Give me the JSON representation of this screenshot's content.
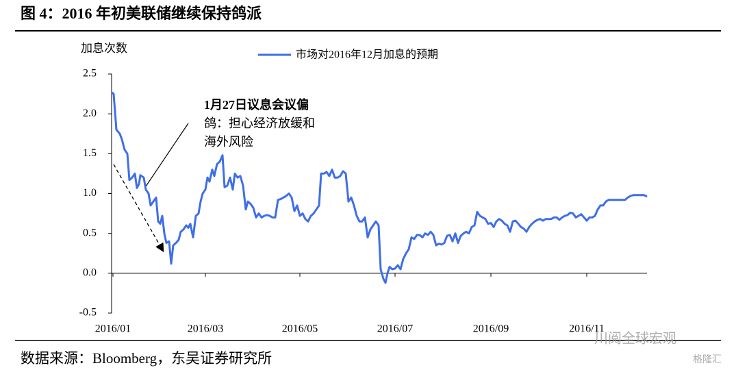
{
  "header": {
    "title": "图 4：2016 年初美联储继续保持鸽派"
  },
  "chart_data": {
    "type": "line",
    "ylabel": "加息次数",
    "ylim": [
      -0.5,
      2.5
    ],
    "yticks": [
      {
        "value": -0.5,
        "label": "-0.5"
      },
      {
        "value": 0,
        "label": "0.0"
      },
      {
        "value": 0.5,
        "label": "0.5"
      },
      {
        "value": 1,
        "label": "1.0"
      },
      {
        "value": 1.5,
        "label": "1.5"
      },
      {
        "value": 2,
        "label": "2.0"
      },
      {
        "value": 2.5,
        "label": "2.5"
      }
    ],
    "xlim": [
      0,
      782
    ],
    "xticks": [
      {
        "value": 2,
        "label": "2016/01"
      },
      {
        "value": 137,
        "label": "2016/03"
      },
      {
        "value": 275,
        "label": "2016/05"
      },
      {
        "value": 414,
        "label": "2016/07"
      },
      {
        "value": 554,
        "label": "2016/09"
      },
      {
        "value": 694,
        "label": "2016/11"
      }
    ],
    "legend": "top",
    "annotation": [
      "1月27日议息会议偏",
      "鸽：担心经济放缓和",
      "海外风险"
    ],
    "series": [
      {
        "name": "市场对2016年12月加息的预期",
        "color": "#3f6ee8",
        "x": [
          0,
          3,
          7,
          12,
          15,
          19,
          23,
          26,
          30,
          34,
          37,
          40,
          42,
          47,
          50,
          54,
          57,
          61,
          65,
          68,
          71,
          74,
          77,
          80,
          84,
          87,
          90,
          94,
          98,
          101,
          105,
          109,
          112,
          115,
          119,
          123,
          127,
          130,
          133,
          137,
          140,
          143,
          147,
          150,
          154,
          158,
          162,
          165,
          169,
          173,
          177,
          180,
          184,
          188,
          192,
          196,
          199,
          203,
          207,
          211,
          215,
          219,
          223,
          227,
          231,
          235,
          239,
          243,
          247,
          251,
          255,
          259,
          263,
          267,
          271,
          275,
          279,
          283,
          287,
          291,
          295,
          299,
          303,
          306,
          310,
          314,
          318,
          322,
          326,
          330,
          334,
          338,
          342,
          346,
          350,
          354,
          358,
          362,
          366,
          370,
          374,
          378,
          382,
          386,
          390,
          393,
          397,
          400,
          403,
          406,
          410,
          414,
          418,
          422,
          426,
          430,
          434,
          438,
          442,
          446,
          450,
          454,
          458,
          462,
          466,
          470,
          474,
          478,
          482,
          486,
          490,
          494,
          498,
          502,
          506,
          510,
          514,
          518,
          522,
          526,
          530,
          534,
          538,
          542,
          546,
          550,
          554,
          558,
          562,
          566,
          570,
          574,
          578,
          582,
          586,
          590,
          594,
          598,
          602,
          606,
          610,
          614,
          618,
          622,
          626,
          630,
          634,
          638,
          642,
          646,
          650,
          654,
          658,
          662,
          666,
          670,
          674,
          678,
          682,
          686,
          690,
          694,
          698,
          702,
          706,
          710,
          714,
          718,
          722,
          726,
          730,
          734,
          738,
          742,
          746,
          750,
          754,
          758,
          762,
          766,
          770,
          774,
          778,
          782
        ],
        "values": [
          2.27,
          2.25,
          1.8,
          1.75,
          1.68,
          1.55,
          1.5,
          1.17,
          1.2,
          1.25,
          1.07,
          1.12,
          1.23,
          1.2,
          1.05,
          1.0,
          0.85,
          0.9,
          0.95,
          0.65,
          0.62,
          0.72,
          0.5,
          0.38,
          0.4,
          0.12,
          0.35,
          0.38,
          0.42,
          0.52,
          0.55,
          0.6,
          0.57,
          0.62,
          0.45,
          0.72,
          0.75,
          0.9,
          1.0,
          1.05,
          1.2,
          1.15,
          1.3,
          1.22,
          1.37,
          1.4,
          1.48,
          1.08,
          1.1,
          1.2,
          1.05,
          1.25,
          1.2,
          1.22,
          1.1,
          0.8,
          0.9,
          0.87,
          0.82,
          0.7,
          0.75,
          0.7,
          0.72,
          0.73,
          0.72,
          0.7,
          0.7,
          0.92,
          0.93,
          0.95,
          0.97,
          1.0,
          0.95,
          0.78,
          0.85,
          0.72,
          0.75,
          0.68,
          0.65,
          0.72,
          0.75,
          0.8,
          0.85,
          1.25,
          1.25,
          1.27,
          1.22,
          1.3,
          1.2,
          1.2,
          1.22,
          1.28,
          1.25,
          0.9,
          0.95,
          0.85,
          0.72,
          0.65,
          0.65,
          0.7,
          0.45,
          0.55,
          0.6,
          0.65,
          0.6,
          0.05,
          -0.07,
          -0.12,
          0.0,
          0.08,
          0.05,
          0.06,
          0.1,
          0.05,
          0.18,
          0.25,
          0.3,
          0.45,
          0.43,
          0.48,
          0.48,
          0.45,
          0.5,
          0.48,
          0.52,
          0.48,
          0.35,
          0.37,
          0.36,
          0.38,
          0.47,
          0.48,
          0.4,
          0.5,
          0.38,
          0.47,
          0.5,
          0.52,
          0.5,
          0.58,
          0.6,
          0.77,
          0.72,
          0.7,
          0.68,
          0.62,
          0.63,
          0.58,
          0.65,
          0.68,
          0.66,
          0.62,
          0.6,
          0.52,
          0.65,
          0.66,
          0.62,
          0.58,
          0.56,
          0.52,
          0.58,
          0.62,
          0.65,
          0.67,
          0.68,
          0.66,
          0.68,
          0.68,
          0.68,
          0.7,
          0.7,
          0.67,
          0.7,
          0.72,
          0.73,
          0.76,
          0.75,
          0.7,
          0.72,
          0.74,
          0.7,
          0.66,
          0.7,
          0.7,
          0.72,
          0.8,
          0.85,
          0.85,
          0.9,
          0.92,
          0.92,
          0.92,
          0.92,
          0.92,
          0.92,
          0.92,
          0.95,
          0.97,
          0.98,
          0.98,
          0.98,
          0.98,
          0.98,
          0.96
        ]
      }
    ]
  },
  "footer": {
    "source": "数据来源：Bloomberg，东吴证券研究所"
  },
  "watermarks": [
    "川阅全球宏观",
    "格隆汇"
  ]
}
